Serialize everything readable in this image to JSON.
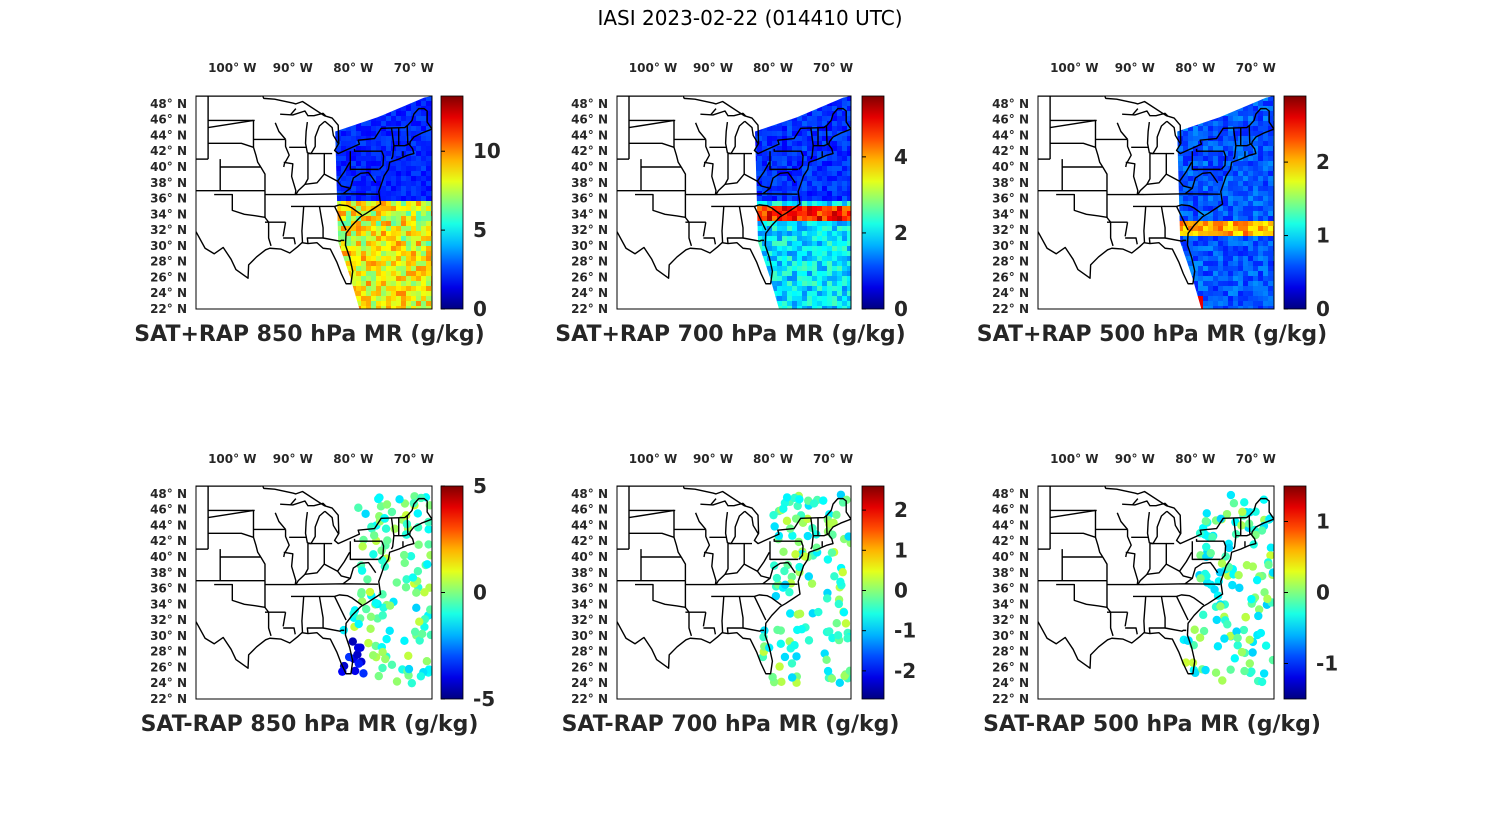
{
  "figure": {
    "title": "IASI 2023-02-22 (014410 UTC)"
  },
  "map": {
    "lon_extent": [
      -106,
      -67
    ],
    "lat_extent": [
      22,
      49
    ],
    "lon_ticks": [
      "100° W",
      "90° W",
      "80° W",
      "70° W"
    ],
    "lat_ticks": [
      "48° N",
      "46° N",
      "44° N",
      "42° N",
      "40° N",
      "38° N",
      "36° N",
      "34° N",
      "32° N",
      "30° N",
      "28° N",
      "26° N",
      "24° N",
      "22° N"
    ],
    "basemap": "US state boundaries",
    "colormap": "jet"
  },
  "panels": [
    {
      "title": "SAT+RAP 850 hPa MR (g/kg)",
      "kind": "swath",
      "colorbar": {
        "min": 0,
        "max": 13.5,
        "ticks": [
          "10",
          "5",
          "0"
        ],
        "tick_values": [
          10,
          5,
          0
        ]
      }
    },
    {
      "title": "SAT+RAP 700 hPa MR (g/kg)",
      "kind": "swath",
      "colorbar": {
        "min": 0,
        "max": 5.6,
        "ticks": [
          "4",
          "2",
          "0"
        ],
        "tick_values": [
          4,
          2,
          0
        ]
      }
    },
    {
      "title": "SAT+RAP 500 hPa MR (g/kg)",
      "kind": "swath",
      "colorbar": {
        "min": 0,
        "max": 2.9,
        "ticks": [
          "2",
          "1",
          "0"
        ],
        "tick_values": [
          2,
          1,
          0
        ]
      }
    },
    {
      "title": "SAT-RAP 850 hPa MR (g/kg)",
      "kind": "points",
      "colorbar": {
        "min": -5,
        "max": 5,
        "ticks": [
          "5",
          "0",
          "-5"
        ],
        "tick_values": [
          5,
          0,
          -5
        ]
      }
    },
    {
      "title": "SAT-RAP 700 hPa MR (g/kg)",
      "kind": "points",
      "colorbar": {
        "min": -2.7,
        "max": 2.6,
        "ticks": [
          "2",
          "1",
          "0",
          "-1",
          "-2"
        ],
        "tick_values": [
          2,
          1,
          0,
          -1,
          -2
        ]
      }
    },
    {
      "title": "SAT-RAP 500 hPa MR (g/kg)",
      "kind": "points",
      "colorbar": {
        "min": -1.5,
        "max": 1.5,
        "ticks": [
          "1",
          "0",
          "-1"
        ],
        "tick_values": [
          1,
          0,
          -1
        ]
      }
    }
  ]
}
